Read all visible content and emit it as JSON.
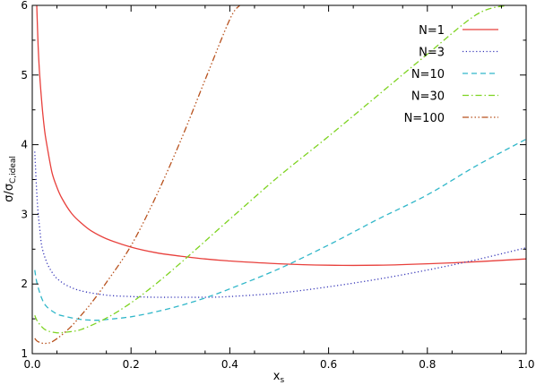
{
  "chart_data": {
    "type": "line",
    "xlabel": "x",
    "xlabel_sub": "s",
    "ylabel": "σ/σ",
    "ylabel_sub": "C,ideal",
    "xlim": [
      0.0,
      1.0
    ],
    "ylim": [
      1.0,
      6.0
    ],
    "x_ticks": [
      {
        "value": 0.0,
        "label": "0.0"
      },
      {
        "value": 0.2,
        "label": "0.2"
      },
      {
        "value": 0.4,
        "label": "0.4"
      },
      {
        "value": 0.6,
        "label": "0.6"
      },
      {
        "value": 0.8,
        "label": "0.8"
      },
      {
        "value": 1.0,
        "label": "1.0"
      }
    ],
    "y_ticks": [
      {
        "value": 1,
        "label": "1"
      },
      {
        "value": 2,
        "label": "2"
      },
      {
        "value": 3,
        "label": "3"
      },
      {
        "value": 4,
        "label": "4"
      },
      {
        "value": 5,
        "label": "5"
      },
      {
        "value": 6,
        "label": "6"
      }
    ],
    "grid": false,
    "legend_position": "top-right",
    "series": [
      {
        "name": "N=1",
        "color": "#e8403c",
        "dash": "solid",
        "x": [
          0.009,
          0.012,
          0.015,
          0.02,
          0.025,
          0.03,
          0.04,
          0.05,
          0.06,
          0.08,
          0.1,
          0.12,
          0.15,
          0.2,
          0.25,
          0.3,
          0.35,
          0.4,
          0.5,
          0.6,
          0.7,
          0.8,
          0.9,
          1.0
        ],
        "y": [
          6.0,
          5.4,
          5.0,
          4.55,
          4.2,
          3.98,
          3.6,
          3.39,
          3.23,
          3.01,
          2.87,
          2.76,
          2.65,
          2.53,
          2.45,
          2.4,
          2.36,
          2.33,
          2.29,
          2.27,
          2.27,
          2.29,
          2.32,
          2.36
        ]
      },
      {
        "name": "N=3",
        "color": "#3535b8",
        "dash": "dotted",
        "x": [
          0.005,
          0.01,
          0.015,
          0.02,
          0.03,
          0.04,
          0.05,
          0.07,
          0.1,
          0.15,
          0.2,
          0.25,
          0.3,
          0.35,
          0.4,
          0.5,
          0.6,
          0.7,
          0.8,
          0.9,
          1.0
        ],
        "y": [
          3.9,
          3.2,
          2.8,
          2.52,
          2.3,
          2.17,
          2.08,
          1.98,
          1.9,
          1.84,
          1.82,
          1.81,
          1.81,
          1.81,
          1.82,
          1.87,
          1.96,
          2.07,
          2.2,
          2.35,
          2.52
        ]
      },
      {
        "name": "N=10",
        "color": "#31b7c9",
        "dash": "dashed",
        "x": [
          0.005,
          0.01,
          0.02,
          0.03,
          0.05,
          0.07,
          0.1,
          0.13,
          0.15,
          0.2,
          0.25,
          0.3,
          0.35,
          0.4,
          0.5,
          0.6,
          0.7,
          0.8,
          0.9,
          1.0
        ],
        "y": [
          2.2,
          2.0,
          1.78,
          1.67,
          1.57,
          1.53,
          1.49,
          1.48,
          1.49,
          1.53,
          1.6,
          1.69,
          1.8,
          1.93,
          2.22,
          2.56,
          2.93,
          3.28,
          3.7,
          4.08
        ]
      },
      {
        "name": "N=30",
        "color": "#7ed321",
        "dash": "dashdot",
        "x": [
          0.005,
          0.01,
          0.02,
          0.03,
          0.05,
          0.07,
          0.1,
          0.15,
          0.2,
          0.25,
          0.3,
          0.4,
          0.5,
          0.6,
          0.7,
          0.8,
          0.9,
          0.96
        ],
        "y": [
          1.55,
          1.47,
          1.38,
          1.33,
          1.3,
          1.31,
          1.35,
          1.51,
          1.73,
          2.0,
          2.3,
          2.93,
          3.55,
          4.12,
          4.71,
          5.3,
          5.87,
          6.0
        ]
      },
      {
        "name": "N=100",
        "color": "#b8521e",
        "dash": "dashdotdotdot",
        "x": [
          0.005,
          0.01,
          0.02,
          0.03,
          0.04,
          0.06,
          0.08,
          0.1,
          0.12,
          0.15,
          0.2,
          0.25,
          0.3,
          0.35,
          0.4,
          0.42
        ],
        "y": [
          1.22,
          1.18,
          1.15,
          1.15,
          1.17,
          1.27,
          1.4,
          1.56,
          1.73,
          2.02,
          2.55,
          3.25,
          4.05,
          4.93,
          5.8,
          6.0
        ]
      }
    ]
  }
}
